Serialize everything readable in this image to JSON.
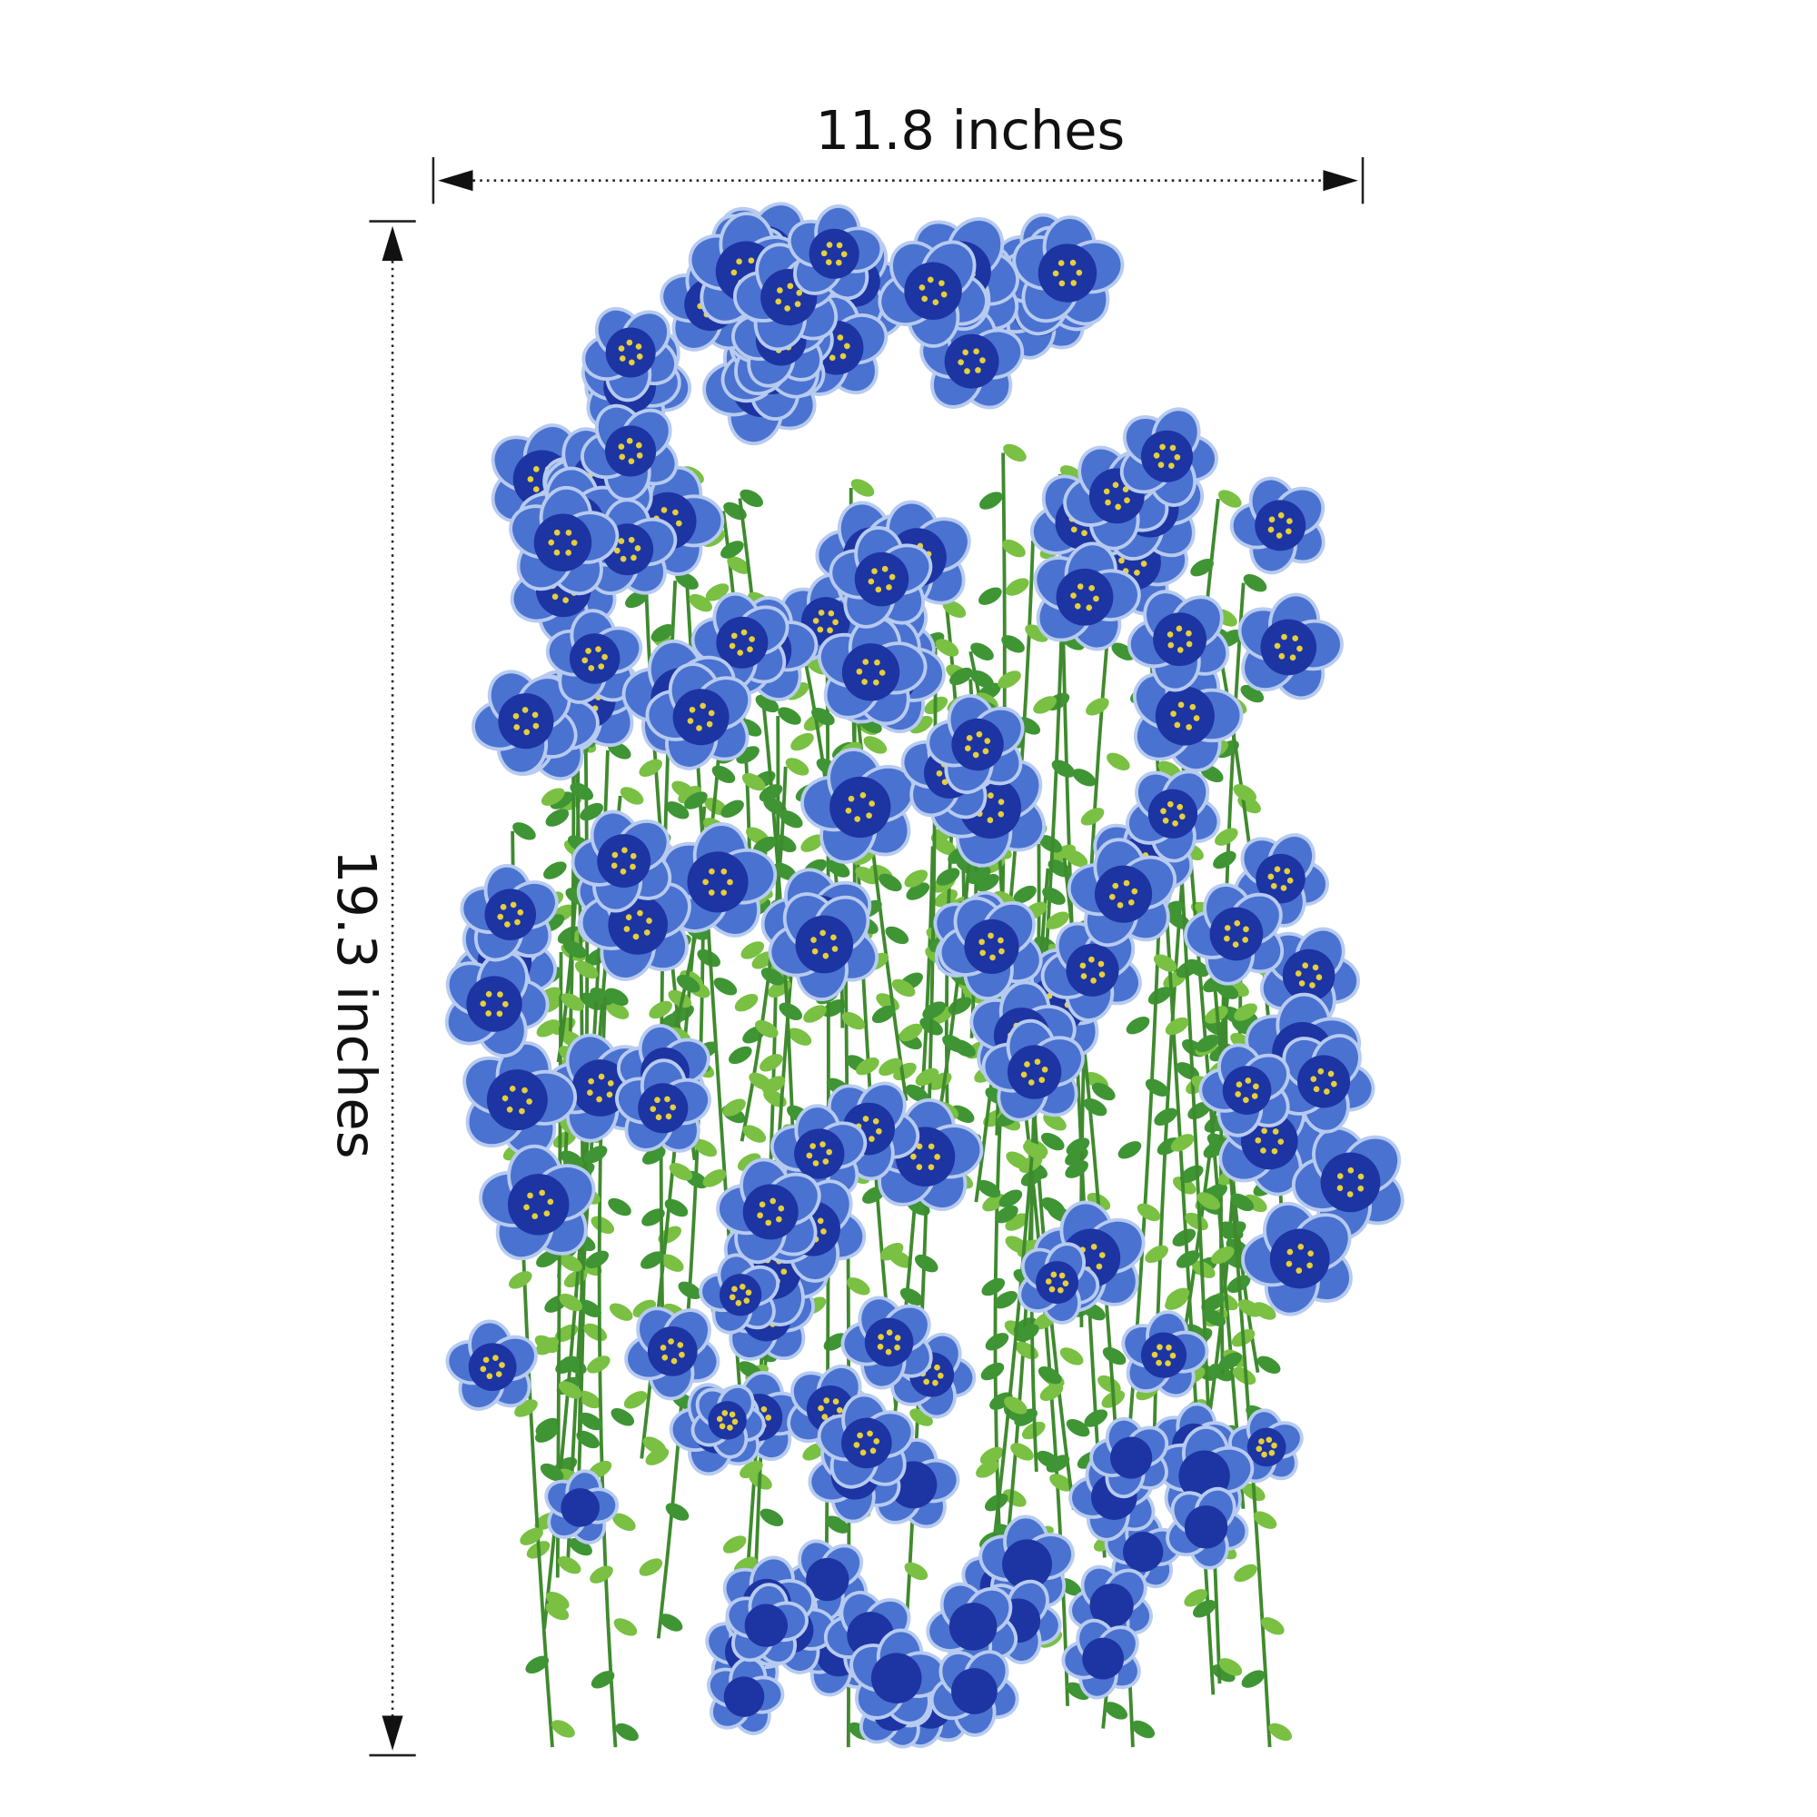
{
  "dimensions": {
    "width": "11.8 inches",
    "height": "19.3 inches"
  }
}
